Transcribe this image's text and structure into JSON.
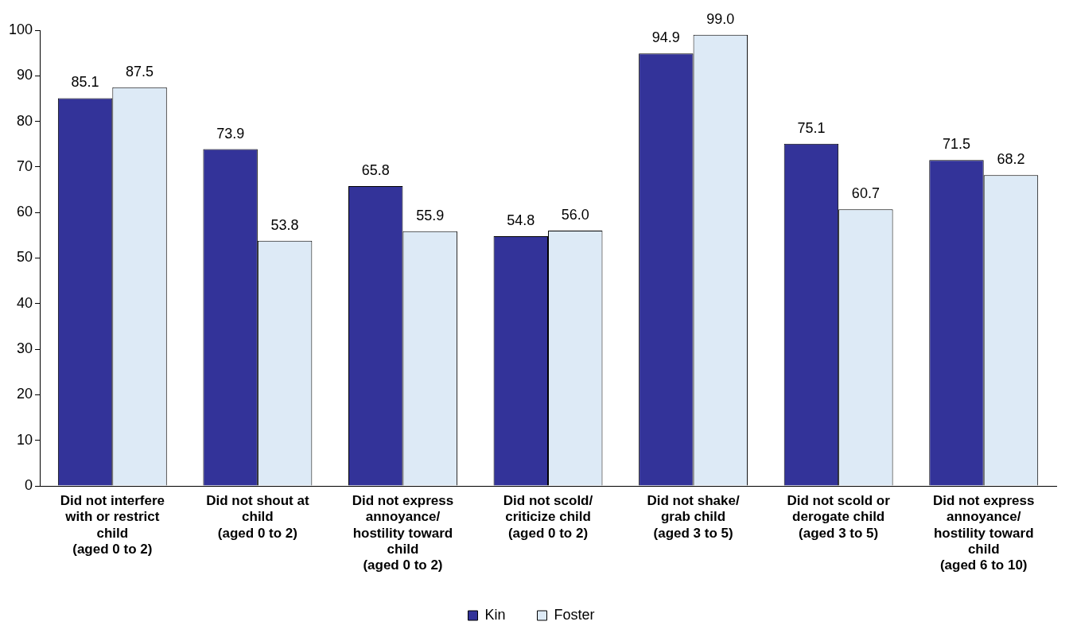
{
  "chart_data": {
    "type": "bar",
    "categories": [
      "Did not interfere with or restrict child (aged 0 to 2)",
      "Did not shout at child (aged 0 to 2)",
      "Did not express annoyance/ hostility toward child (aged 0 to 2)",
      "Did not scold/ criticize child (aged 0 to 2)",
      "Did not shake/ grab child (aged 3 to 5)",
      "Did not scold or derogate child (aged 3 to 5)",
      "Did not express annoyance/ hostility toward child (aged 6 to 10)"
    ],
    "series": [
      {
        "name": "Kin",
        "color": "#333399",
        "values": [
          85.1,
          73.9,
          65.8,
          54.8,
          94.9,
          75.1,
          71.5
        ],
        "value_labels": [
          "85.1",
          "73.9",
          "65.8",
          "54.8",
          "94.9",
          "75.1",
          "71.5"
        ]
      },
      {
        "name": "Foster",
        "color": "#ddeaf6",
        "values": [
          87.5,
          53.8,
          55.9,
          56.0,
          99.0,
          60.7,
          68.2
        ],
        "value_labels": [
          "87.5",
          "53.8",
          "55.9",
          "56.0",
          "99.0",
          "60.7",
          "68.2"
        ]
      }
    ],
    "ylim": [
      0,
      100
    ],
    "yticks": [
      0,
      10,
      20,
      30,
      40,
      50,
      60,
      70,
      80,
      90,
      100
    ],
    "grid": false,
    "legend": "bottom"
  }
}
